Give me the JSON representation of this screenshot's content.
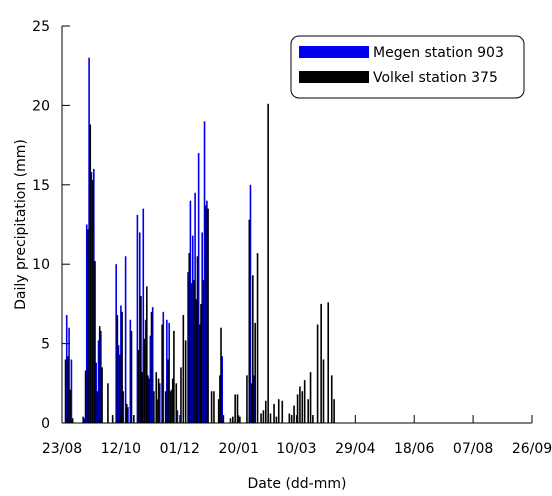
{
  "chart_data": {
    "type": "bar",
    "xlabel": "Date (dd-mm)",
    "ylabel": "Daily precipitation (mm)",
    "ylim": [
      0,
      25
    ],
    "yticks": [
      0,
      5,
      10,
      15,
      20,
      25
    ],
    "xlim": [
      "2009-08-23",
      "2010-09-26"
    ],
    "xticks": [
      {
        "date": "2009-08-23",
        "label": "23/08"
      },
      {
        "date": "2009-10-12",
        "label": "12/10"
      },
      {
        "date": "2009-12-01",
        "label": "01/12"
      },
      {
        "date": "2010-01-20",
        "label": "20/01"
      },
      {
        "date": "2010-03-10",
        "label": "10/03"
      },
      {
        "date": "2010-04-29",
        "label": "29/04"
      },
      {
        "date": "2010-06-18",
        "label": "18/06"
      },
      {
        "date": "2010-08-07",
        "label": "07/08"
      },
      {
        "date": "2010-09-26",
        "label": "26/09"
      }
    ],
    "legend_position": "top-right",
    "grid": false,
    "series": [
      {
        "name": "Megen station 903",
        "color": "#0000ee",
        "points": [
          [
            "2009-08-27",
            6.8
          ],
          [
            "2009-08-29",
            6.0
          ],
          [
            "2009-08-31",
            4.0
          ],
          [
            "2009-09-11",
            0.3
          ],
          [
            "2009-09-13",
            12.5
          ],
          [
            "2009-09-15",
            23.0
          ],
          [
            "2009-09-17",
            15.8
          ],
          [
            "2009-09-19",
            16.0
          ],
          [
            "2009-09-21",
            3.8
          ],
          [
            "2009-09-23",
            5.2
          ],
          [
            "2009-09-25",
            5.8
          ],
          [
            "2009-10-08",
            10.0
          ],
          [
            "2009-10-10",
            4.9
          ],
          [
            "2009-10-12",
            7.4
          ],
          [
            "2009-10-14",
            2.0
          ],
          [
            "2009-10-16",
            10.5
          ],
          [
            "2009-10-18",
            1.0
          ],
          [
            "2009-10-20",
            6.5
          ],
          [
            "2009-10-26",
            13.1
          ],
          [
            "2009-10-28",
            12.0
          ],
          [
            "2009-10-31",
            13.5
          ],
          [
            "2009-11-02",
            6.5
          ],
          [
            "2009-11-04",
            3.0
          ],
          [
            "2009-11-06",
            5.5
          ],
          [
            "2009-11-08",
            7.3
          ],
          [
            "2009-11-12",
            1.5
          ],
          [
            "2009-11-14",
            2.5
          ],
          [
            "2009-11-17",
            7.0
          ],
          [
            "2009-11-20",
            6.5
          ],
          [
            "2009-11-22",
            6.3
          ],
          [
            "2009-11-24",
            2.1
          ],
          [
            "2009-11-29",
            0.8
          ],
          [
            "2009-12-08",
            9.5
          ],
          [
            "2009-12-10",
            14.0
          ],
          [
            "2009-12-12",
            11.8
          ],
          [
            "2009-12-14",
            14.5
          ],
          [
            "2009-12-17",
            17.0
          ],
          [
            "2009-12-20",
            12.0
          ],
          [
            "2009-12-22",
            19.0
          ],
          [
            "2009-12-24",
            14.0
          ],
          [
            "2010-01-04",
            3.0
          ],
          [
            "2010-01-06",
            4.2
          ],
          [
            "2010-01-30",
            15.0
          ],
          [
            "2010-02-02",
            3.0
          ]
        ]
      },
      {
        "name": "Volkel station 375",
        "color": "#000000",
        "points": [
          [
            "2009-08-26",
            4.0
          ],
          [
            "2009-08-28",
            4.2
          ],
          [
            "2009-08-30",
            2.1
          ],
          [
            "2009-09-01",
            0.3
          ],
          [
            "2009-09-10",
            0.4
          ],
          [
            "2009-09-12",
            3.3
          ],
          [
            "2009-09-14",
            12.2
          ],
          [
            "2009-09-16",
            18.8
          ],
          [
            "2009-09-18",
            15.3
          ],
          [
            "2009-09-20",
            10.2
          ],
          [
            "2009-09-22",
            2.0
          ],
          [
            "2009-09-24",
            6.1
          ],
          [
            "2009-09-26",
            3.5
          ],
          [
            "2009-10-01",
            2.5
          ],
          [
            "2009-10-05",
            0.5
          ],
          [
            "2009-10-09",
            6.8
          ],
          [
            "2009-10-11",
            4.3
          ],
          [
            "2009-10-13",
            7.0
          ],
          [
            "2009-10-17",
            1.2
          ],
          [
            "2009-10-21",
            5.8
          ],
          [
            "2009-10-23",
            0.5
          ],
          [
            "2009-10-27",
            4.6
          ],
          [
            "2009-10-29",
            8.0
          ],
          [
            "2009-10-30",
            3.2
          ],
          [
            "2009-11-01",
            5.3
          ],
          [
            "2009-11-03",
            8.6
          ],
          [
            "2009-11-05",
            2.8
          ],
          [
            "2009-11-07",
            7.0
          ],
          [
            "2009-11-09",
            2.0
          ],
          [
            "2009-11-11",
            3.2
          ],
          [
            "2009-11-13",
            2.8
          ],
          [
            "2009-11-16",
            6.2
          ],
          [
            "2009-11-19",
            2.0
          ],
          [
            "2009-11-21",
            4.0
          ],
          [
            "2009-11-23",
            2.0
          ],
          [
            "2009-11-25",
            2.8
          ],
          [
            "2009-11-26",
            5.8
          ],
          [
            "2009-11-28",
            2.5
          ],
          [
            "2009-12-02",
            3.5
          ],
          [
            "2009-12-04",
            6.8
          ],
          [
            "2009-12-06",
            5.2
          ],
          [
            "2009-12-09",
            10.7
          ],
          [
            "2009-12-11",
            8.8
          ],
          [
            "2009-12-13",
            9.0
          ],
          [
            "2009-12-15",
            7.8
          ],
          [
            "2009-12-16",
            10.5
          ],
          [
            "2009-12-18",
            6.2
          ],
          [
            "2009-12-19",
            7.5
          ],
          [
            "2009-12-21",
            9.0
          ],
          [
            "2009-12-23",
            13.7
          ],
          [
            "2009-12-25",
            13.5
          ],
          [
            "2009-12-28",
            2.0
          ],
          [
            "2009-12-30",
            2.0
          ],
          [
            "2010-01-03",
            1.5
          ],
          [
            "2010-01-05",
            6.0
          ],
          [
            "2010-01-07",
            0.5
          ],
          [
            "2010-01-13",
            0.3
          ],
          [
            "2010-01-15",
            0.4
          ],
          [
            "2010-01-17",
            1.8
          ],
          [
            "2010-01-19",
            1.8
          ],
          [
            "2010-01-21",
            0.4
          ],
          [
            "2010-01-27",
            3.0
          ],
          [
            "2010-01-29",
            12.8
          ],
          [
            "2010-01-31",
            2.5
          ],
          [
            "2010-02-01",
            9.3
          ],
          [
            "2010-02-03",
            6.3
          ],
          [
            "2010-02-05",
            10.7
          ],
          [
            "2010-02-08",
            0.6
          ],
          [
            "2010-02-10",
            0.8
          ],
          [
            "2010-02-12",
            1.4
          ],
          [
            "2010-02-14",
            20.1
          ],
          [
            "2010-02-16",
            0.6
          ],
          [
            "2010-02-19",
            1.2
          ],
          [
            "2010-02-21",
            0.4
          ],
          [
            "2010-02-23",
            1.5
          ],
          [
            "2010-02-26",
            1.4
          ],
          [
            "2010-03-04",
            0.6
          ],
          [
            "2010-03-06",
            0.5
          ],
          [
            "2010-03-08",
            1.1
          ],
          [
            "2010-03-11",
            1.8
          ],
          [
            "2010-03-13",
            2.3
          ],
          [
            "2010-03-15",
            2.0
          ],
          [
            "2010-03-17",
            2.7
          ],
          [
            "2010-03-20",
            1.5
          ],
          [
            "2010-03-22",
            3.2
          ],
          [
            "2010-03-24",
            0.5
          ],
          [
            "2010-03-28",
            6.2
          ],
          [
            "2010-03-31",
            7.5
          ],
          [
            "2010-04-02",
            4.0
          ],
          [
            "2010-04-06",
            7.6
          ],
          [
            "2010-04-09",
            3.0
          ],
          [
            "2010-04-11",
            1.5
          ]
        ]
      }
    ]
  }
}
